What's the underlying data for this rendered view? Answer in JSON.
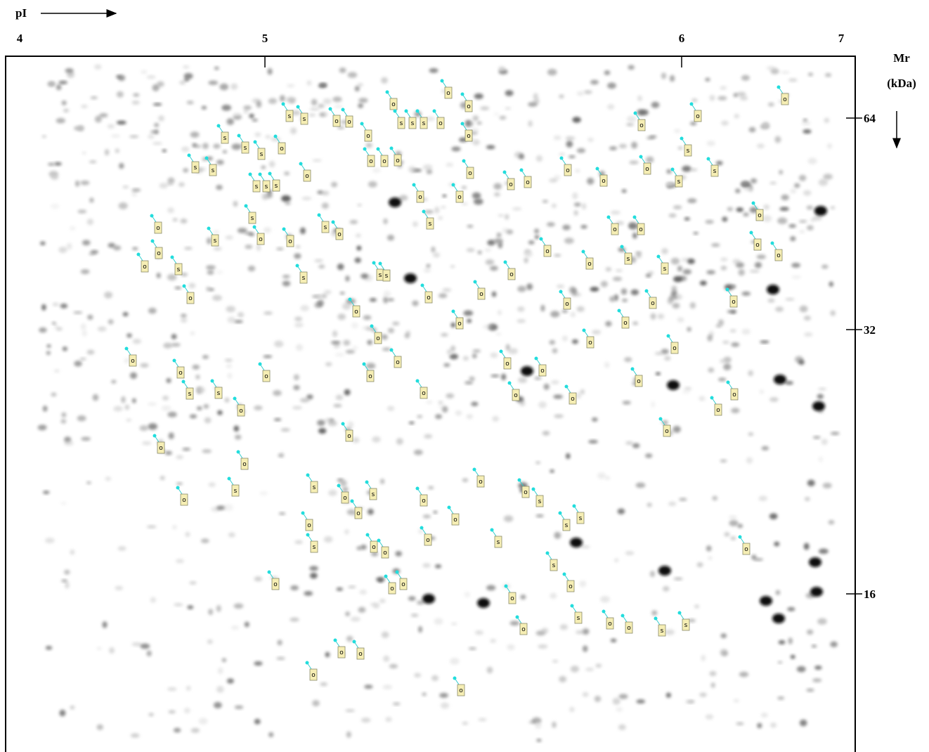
{
  "x_axis": {
    "label": "pI",
    "ticks": [
      "4",
      "5",
      "6",
      "7"
    ]
  },
  "y_axis": {
    "label": "Mr",
    "unit": "(kDa)",
    "ticks": [
      "64",
      "32",
      "16"
    ]
  },
  "spot_labels": [
    "o",
    "o",
    "o",
    "o",
    "o",
    "s",
    "s",
    "o",
    "o",
    "s",
    "s",
    "s",
    "o",
    "o",
    "o",
    "o",
    "o",
    "s",
    "s",
    "s",
    "s",
    "s",
    "s",
    "o",
    "o",
    "o",
    "o",
    "o",
    "o",
    "o",
    "o",
    "o",
    "o",
    "s",
    "s",
    "s",
    "s",
    "s",
    "o",
    "o",
    "o",
    "s",
    "s",
    "o",
    "s",
    "o",
    "o",
    "o",
    "o",
    "o",
    "o",
    "s",
    "o",
    "o",
    "o",
    "s",
    "s",
    "s",
    "s",
    "o",
    "o",
    "o",
    "s",
    "s",
    "o",
    "o",
    "o",
    "o",
    "o",
    "o",
    "o",
    "o",
    "o",
    "o",
    "o",
    "o",
    "o",
    "o",
    "o",
    "o",
    "o",
    "o",
    "o",
    "o",
    "o",
    "s",
    "s",
    "o",
    "o",
    "o",
    "o",
    "o",
    "o",
    "o",
    "o",
    "o",
    "o",
    "o",
    "s",
    "s",
    "o",
    "s",
    "o",
    "o",
    "s",
    "o",
    "o",
    "o",
    "s",
    "s",
    "s",
    "o",
    "o",
    "o",
    "s",
    "o",
    "o",
    "o",
    "o",
    "o",
    "s",
    "o",
    "s",
    "o",
    "o",
    "s",
    "s",
    "o",
    "o",
    "o",
    "o",
    "o"
  ]
}
